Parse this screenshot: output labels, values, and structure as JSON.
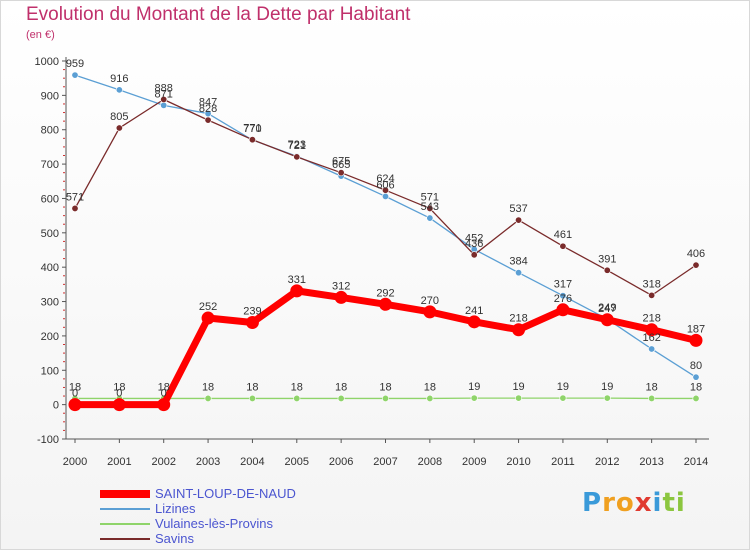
{
  "header": {
    "title": "Evolution du Montant de la Dette par Habitant",
    "subtitle": "(en €)"
  },
  "logo": {
    "letters": [
      "P",
      "r",
      "o",
      "x",
      "i",
      "t",
      "i"
    ],
    "colors": [
      "#3a9ad9",
      "#f0a020",
      "#f0a020",
      "#e03a30",
      "#3a9ad9",
      "#8cc63f",
      "#8cc63f"
    ]
  },
  "chart_data": {
    "type": "line",
    "x": [
      "2000",
      "2001",
      "2002",
      "2003",
      "2004",
      "2005",
      "2006",
      "2007",
      "2008",
      "2009",
      "2010",
      "2011",
      "2012",
      "2013",
      "2014"
    ],
    "ylim": [
      -100,
      1000
    ],
    "yticks": [
      "-100",
      "0",
      "100",
      "200",
      "300",
      "400",
      "500",
      "600",
      "700",
      "800",
      "900",
      "1000"
    ],
    "grid": false,
    "legend_position": "bottom-left",
    "series": [
      {
        "name": "SAINT-LOUP-DE-NAUD",
        "color": "#ff0000",
        "values": [
          0,
          0,
          0,
          252,
          239,
          331,
          312,
          292,
          270,
          241,
          218,
          276,
          247,
          218,
          187
        ],
        "labels": [
          "0",
          "0",
          "0",
          "252",
          "239",
          "331",
          "312",
          "292",
          "270",
          "241",
          "218",
          "276",
          "247",
          "218",
          "187"
        ]
      },
      {
        "name": "Lizines",
        "color": "#5b9fd4",
        "values": [
          959,
          916,
          871,
          847,
          770,
          723,
          665,
          606,
          543,
          452,
          384,
          317,
          249,
          162,
          80
        ],
        "labels": [
          "959",
          "916",
          "871",
          "847",
          "770",
          "723",
          "665",
          "606",
          "543",
          "452",
          "384",
          "317",
          "249",
          "162",
          "80"
        ]
      },
      {
        "name": "Vulaines-lès-Provins",
        "color": "#8fd46a",
        "values": [
          18,
          18,
          18,
          18,
          18,
          18,
          18,
          18,
          18,
          19,
          19,
          19,
          19,
          18,
          18
        ],
        "labels": [
          "18",
          "18",
          "18",
          "18",
          "18",
          "18",
          "18",
          "18",
          "18",
          "19",
          "19",
          "19",
          "19",
          "18",
          "18"
        ]
      },
      {
        "name": "Savins",
        "color": "#7a2b2b",
        "values": [
          571,
          805,
          888,
          828,
          771,
          721,
          675,
          624,
          571,
          436,
          537,
          461,
          391,
          318,
          406
        ],
        "labels": [
          "571",
          "805",
          "888",
          "828",
          "771",
          "721",
          "675",
          "624",
          "571",
          "436",
          "537",
          "461",
          "391",
          "318",
          "406"
        ]
      }
    ]
  }
}
